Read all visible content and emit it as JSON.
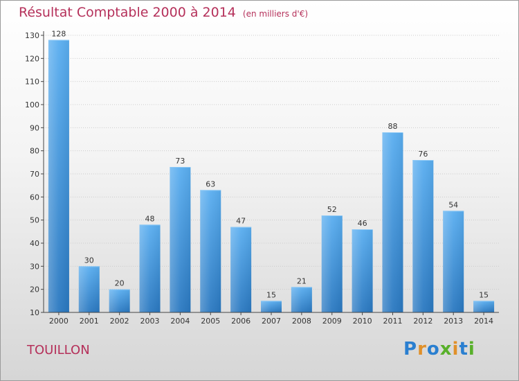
{
  "title": "Résultat Comptable 2000 à 2014",
  "subtitle": "(en milliers d'€)",
  "town": "TOUILLON",
  "brand": {
    "text": "Proxiti",
    "colors": [
      "#2a7fd0",
      "#e0902a",
      "#2a7fd0",
      "#58b02a",
      "#e0902a",
      "#2a7fd0",
      "#58b02a"
    ]
  },
  "colors": {
    "bar_top": "#5aaef0",
    "bar_bottom": "#2a78c0",
    "axis": "#444444",
    "grid": "#cccccc"
  },
  "chart_data": {
    "type": "bar",
    "title": "Résultat Comptable 2000 à 2014",
    "subtitle": "(en milliers d'€)",
    "categories": [
      "2000",
      "2001",
      "2002",
      "2003",
      "2004",
      "2005",
      "2006",
      "2007",
      "2008",
      "2009",
      "2010",
      "2011",
      "2012",
      "2013",
      "2014"
    ],
    "values": [
      128,
      30,
      20,
      48,
      73,
      63,
      47,
      15,
      21,
      52,
      46,
      88,
      76,
      54,
      15
    ],
    "ylim": [
      10,
      130
    ],
    "yticks": [
      10,
      20,
      30,
      40,
      50,
      60,
      70,
      80,
      90,
      100,
      110,
      120,
      130
    ],
    "xlabel": "",
    "ylabel": "",
    "grid": true,
    "legend": "none"
  }
}
